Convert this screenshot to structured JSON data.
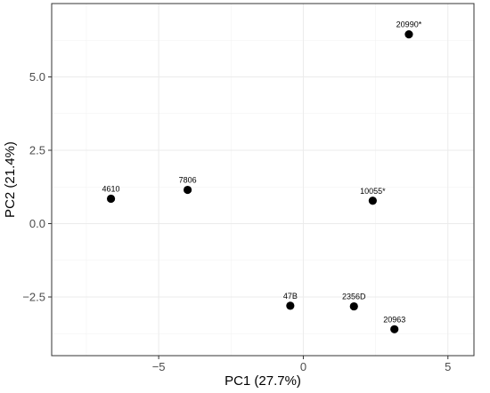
{
  "chart_data": {
    "type": "scatter",
    "title": "",
    "xlabel": "PC1 (27.7%)",
    "ylabel": "PC2 (21.4%)",
    "xlim": [
      -8.7,
      5.9
    ],
    "ylim": [
      -4.5,
      7.5
    ],
    "x_ticks": [
      -5,
      0,
      5
    ],
    "x_tick_labels": [
      "−5",
      "0",
      "5"
    ],
    "y_ticks": [
      -2.5,
      0.0,
      2.5,
      5.0
    ],
    "y_tick_labels": [
      "−2.5",
      "0.0",
      "2.5",
      "5.0"
    ],
    "grid": true,
    "theme": "bw",
    "point_color": "#000000",
    "points": [
      {
        "label": "4610",
        "x": -6.65,
        "y": 0.85
      },
      {
        "label": "7806",
        "x": -4.0,
        "y": 1.15
      },
      {
        "label": "20990*",
        "x": 3.65,
        "y": 6.45
      },
      {
        "label": "10055*",
        "x": 2.4,
        "y": 0.78
      },
      {
        "label": "47B",
        "x": -0.45,
        "y": -2.8
      },
      {
        "label": "2356D",
        "x": 1.75,
        "y": -2.82
      },
      {
        "label": "20963",
        "x": 3.15,
        "y": -3.6
      }
    ]
  }
}
